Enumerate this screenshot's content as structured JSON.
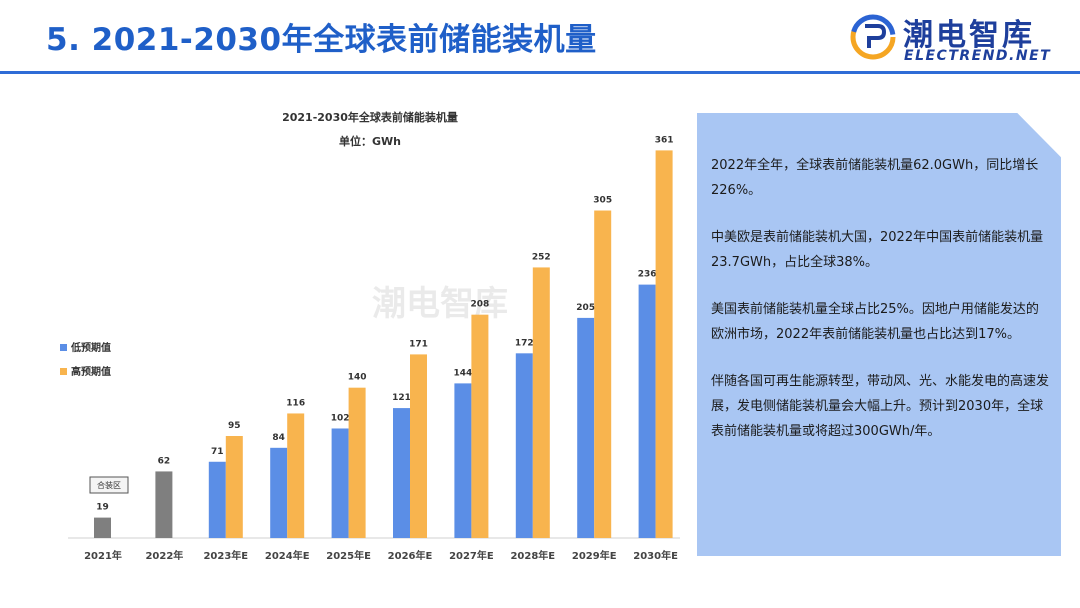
{
  "header": {
    "title": "5. 2021-2030年全球表前储能装机量",
    "logo_cn": "潮电智库",
    "logo_en": "ELECTREND.NET"
  },
  "colors": {
    "title_blue": "#1f5fc8",
    "low_series": "#5b8ee6",
    "high_series": "#f8b44e",
    "actual": "#7f7f7f",
    "panel_bg": "#a9c6f3"
  },
  "chart_data": {
    "type": "bar",
    "title": "2021-2030年全球表前储能装机量",
    "subtitle": "单位：GWh",
    "categories": [
      "2021年",
      "2022年",
      "2023年E",
      "2024年E",
      "2025年E",
      "2026年E",
      "2027年E",
      "2028年E",
      "2029年E",
      "2030年E"
    ],
    "actual": {
      "name": "合装区",
      "values": [
        19,
        62,
        null,
        null,
        null,
        null,
        null,
        null,
        null,
        null
      ]
    },
    "series": [
      {
        "name": "低预期值",
        "values": [
          null,
          null,
          71,
          84,
          102,
          121,
          144,
          172,
          205,
          236
        ]
      },
      {
        "name": "高预期值",
        "values": [
          null,
          null,
          95,
          116,
          140,
          171,
          208,
          252,
          305,
          361
        ]
      }
    ],
    "ylim": [
      0,
      380
    ],
    "grid": false,
    "legend_position": "left",
    "watermark": "潮电智库"
  },
  "panel": {
    "paragraphs": [
      "2022年全年，全球表前储能装机量62.0GWh，同比增长226%。",
      "中美欧是表前储能装机大国，2022年中国表前储能装机量23.7GWh，占比全球38%。",
      "美国表前储能装机量全球占比25%。因地户用储能发达的欧洲市场，2022年表前储能装机量也占比达到17%。",
      "伴随各国可再生能源转型，带动风、光、水能发电的高速发展，发电侧储能装机量会大幅上升。预计到2030年，全球表前储能装机量或将超过300GWh/年。"
    ]
  }
}
